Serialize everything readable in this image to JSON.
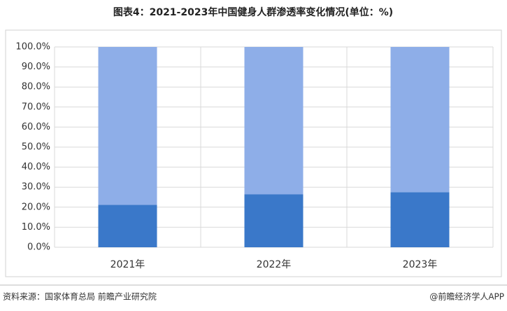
{
  "chart_data": {
    "type": "stacked-bar",
    "title": "图表4：2021-2023年中国健身人群渗透率变化情况(单位：%)",
    "categories": [
      "2021年",
      "2022年",
      "2023年"
    ],
    "series": [
      {
        "color": "#3a78c9",
        "values": [
          21.2,
          26.4,
          27.5
        ]
      },
      {
        "color": "#8eaee8",
        "values": [
          78.8,
          73.6,
          72.5
        ]
      }
    ],
    "ylim": [
      0,
      100
    ],
    "yticks": [
      {
        "value": 0,
        "label": "0.0%"
      },
      {
        "value": 10,
        "label": "10.0%"
      },
      {
        "value": 20,
        "label": "20.0%"
      },
      {
        "value": 30,
        "label": "30.0%"
      },
      {
        "value": 40,
        "label": "40.0%"
      },
      {
        "value": 50,
        "label": "50.0%"
      },
      {
        "value": 60,
        "label": "60.0%"
      },
      {
        "value": 70,
        "label": "70.0%"
      },
      {
        "value": 80,
        "label": "80.0%"
      },
      {
        "value": 90,
        "label": "90.0%"
      },
      {
        "value": 100,
        "label": "100.0%"
      }
    ],
    "grid": true,
    "source": "资料来源：国家体育总局 前瞻产业研究院",
    "credit": "@前瞻经济学人APP"
  }
}
